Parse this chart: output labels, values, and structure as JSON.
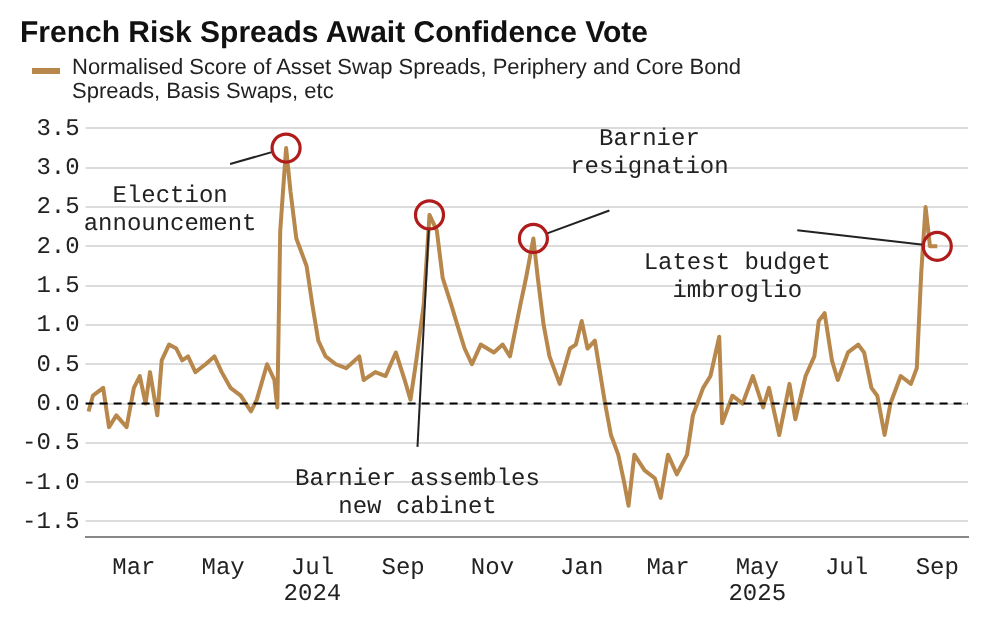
{
  "chart_data": {
    "type": "line",
    "title": "French Risk Spreads Await Confidence Vote",
    "legend": "top",
    "series": [
      {
        "name": "Normalised Score of Asset Swap Spreads, Periphery and Core Bond Spreads, Basis Swaps, etc",
        "color": "#b8874c",
        "x": [
          "2024-01-30",
          "2024-02-02",
          "2024-02-09",
          "2024-02-13",
          "2024-02-18",
          "2024-02-25",
          "2024-03-01",
          "2024-03-05",
          "2024-03-09",
          "2024-03-12",
          "2024-03-17",
          "2024-03-20",
          "2024-03-25",
          "2024-03-30",
          "2024-04-03",
          "2024-04-07",
          "2024-04-12",
          "2024-04-19",
          "2024-04-25",
          "2024-04-30",
          "2024-05-06",
          "2024-05-13",
          "2024-05-20",
          "2024-05-24",
          "2024-05-31",
          "2024-06-05",
          "2024-06-07",
          "2024-06-09",
          "2024-06-13",
          "2024-06-16",
          "2024-06-20",
          "2024-06-27",
          "2024-07-01",
          "2024-07-05",
          "2024-07-10",
          "2024-07-17",
          "2024-07-24",
          "2024-08-02",
          "2024-08-05",
          "2024-08-13",
          "2024-08-20",
          "2024-08-27",
          "2024-09-02",
          "2024-09-06",
          "2024-09-10",
          "2024-09-15",
          "2024-09-19",
          "2024-09-24",
          "2024-09-28",
          "2024-10-04",
          "2024-10-08",
          "2024-10-13",
          "2024-10-18",
          "2024-10-24",
          "2024-11-02",
          "2024-11-08",
          "2024-11-13",
          "2024-11-20",
          "2024-11-24",
          "2024-11-29",
          "2024-12-02",
          "2024-12-06",
          "2024-12-10",
          "2024-12-17",
          "2024-12-24",
          "2024-12-28",
          "2025-01-01",
          "2025-01-05",
          "2025-01-10",
          "2025-01-17",
          "2025-01-21",
          "2025-01-26",
          "2025-01-30",
          "2025-02-02",
          "2025-02-06",
          "2025-02-13",
          "2025-02-20",
          "2025-02-24",
          "2025-03-01",
          "2025-03-07",
          "2025-03-14",
          "2025-03-18",
          "2025-03-25",
          "2025-03-30",
          "2025-04-05",
          "2025-04-07",
          "2025-04-14",
          "2025-04-21",
          "2025-04-28",
          "2025-05-05",
          "2025-05-09",
          "2025-05-16",
          "2025-05-23",
          "2025-05-27",
          "2025-06-03",
          "2025-06-09",
          "2025-06-12",
          "2025-06-16",
          "2025-06-21",
          "2025-06-25",
          "2025-07-02",
          "2025-07-09",
          "2025-07-13",
          "2025-07-18",
          "2025-07-22",
          "2025-07-27",
          "2025-07-31",
          "2025-08-07",
          "2025-08-14",
          "2025-08-18",
          "2025-08-21",
          "2025-08-24",
          "2025-08-27",
          "2025-09-01"
        ],
        "values": [
          -0.1,
          0.1,
          0.2,
          -0.3,
          -0.15,
          -0.3,
          0.2,
          0.35,
          0.0,
          0.4,
          -0.15,
          0.55,
          0.75,
          0.7,
          0.55,
          0.6,
          0.4,
          0.5,
          0.6,
          0.4,
          0.2,
          0.1,
          -0.1,
          0.05,
          0.5,
          0.3,
          -0.05,
          2.2,
          3.25,
          2.7,
          2.1,
          1.75,
          1.25,
          0.8,
          0.6,
          0.5,
          0.45,
          0.6,
          0.3,
          0.4,
          0.35,
          0.65,
          0.3,
          0.05,
          0.55,
          1.25,
          2.4,
          2.2,
          1.6,
          1.25,
          1.0,
          0.7,
          0.5,
          0.75,
          0.65,
          0.75,
          0.6,
          1.25,
          1.6,
          2.1,
          1.6,
          1.0,
          0.6,
          0.25,
          0.7,
          0.75,
          1.05,
          0.7,
          0.8,
          0.0,
          -0.4,
          -0.65,
          -1.0,
          -1.3,
          -0.65,
          -0.85,
          -0.95,
          -1.2,
          -0.65,
          -0.9,
          -0.65,
          -0.15,
          0.2,
          0.35,
          0.85,
          -0.25,
          0.1,
          0.0,
          0.35,
          -0.05,
          0.2,
          -0.4,
          0.25,
          -0.2,
          0.35,
          0.6,
          1.05,
          1.15,
          0.55,
          0.3,
          0.65,
          0.75,
          0.65,
          0.2,
          0.1,
          -0.4,
          0.0,
          0.35,
          0.25,
          0.45,
          1.65,
          2.5,
          2.0,
          2.0
        ]
      }
    ],
    "xlim": [
      "2024-01-28",
      "2025-09-22"
    ],
    "xticks": [
      {
        "value": "2024-03-01",
        "label": "Mar"
      },
      {
        "value": "2024-05-01",
        "label": "May"
      },
      {
        "value": "2024-07-01",
        "label": "Jul"
      },
      {
        "value": "2024-09-01",
        "label": "Sep"
      },
      {
        "value": "2024-11-01",
        "label": "Nov"
      },
      {
        "value": "2025-01-01",
        "label": "Jan"
      },
      {
        "value": "2025-03-01",
        "label": "Mar"
      },
      {
        "value": "2025-05-01",
        "label": "May"
      },
      {
        "value": "2025-07-01",
        "label": "Jul"
      },
      {
        "value": "2025-09-01",
        "label": "Sep"
      }
    ],
    "ylim": [
      -1.7,
      3.5
    ],
    "yticks": [
      {
        "value": -1.5,
        "label": "-1.5"
      },
      {
        "value": -1,
        "label": "-1.0"
      },
      {
        "value": -0.5,
        "label": "-0.5"
      },
      {
        "value": 0,
        "label": "0.0"
      },
      {
        "value": 0.5,
        "label": "0.5"
      },
      {
        "value": 1,
        "label": "1.0"
      },
      {
        "value": 1.5,
        "label": "1.5"
      },
      {
        "value": 2,
        "label": "2.0"
      },
      {
        "value": 2.5,
        "label": "2.5"
      },
      {
        "value": 3,
        "label": "3.0"
      },
      {
        "value": 3.5,
        "label": "3.5"
      }
    ],
    "grid": "y",
    "ref_lines": [
      {
        "axis": "y",
        "value": 0,
        "color": "#000000",
        "line_style": "dashed"
      }
    ],
    "annotations": [
      {
        "text": "Election announcement",
        "x": "2024-06-13",
        "y": 3.25
      },
      {
        "text": "Barnier assembles new cabinet",
        "x": "2024-09-19",
        "y": 2.4
      },
      {
        "text": "Barnier resignation",
        "x": "2024-11-29",
        "y": 2.1
      },
      {
        "text": "Latest budget imbroglio",
        "x": "2025-09-01",
        "y": 2.0
      },
      "2024",
      "2025"
    ]
  }
}
